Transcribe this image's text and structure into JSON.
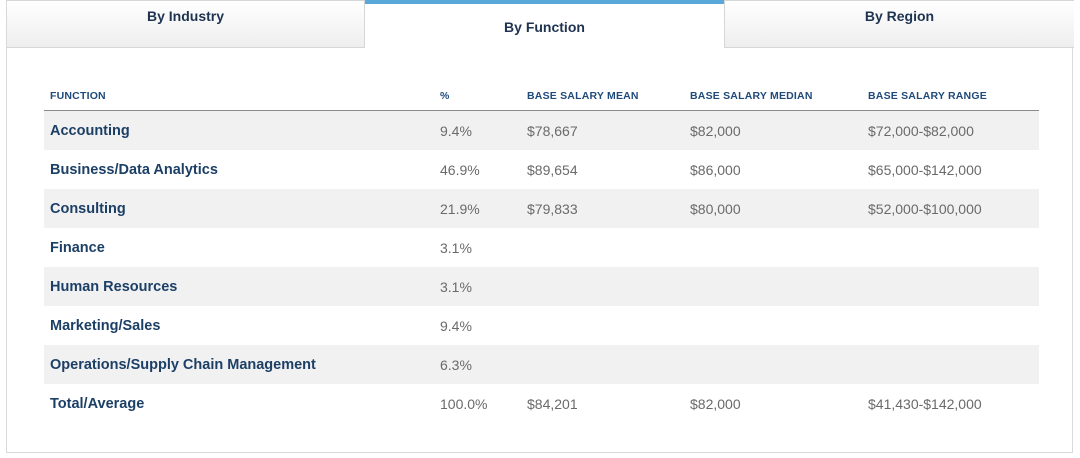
{
  "tabs": [
    {
      "label": "By Industry",
      "active": false
    },
    {
      "label": "By Function",
      "active": true
    },
    {
      "label": "By Region",
      "active": false
    }
  ],
  "colors": {
    "accent": "#5aa8d9",
    "header_text": "#1f4a7a",
    "function_text": "#1c3f66",
    "row_shade": "#f1f1f1"
  },
  "table": {
    "headers": [
      "FUNCTION",
      "%",
      "BASE SALARY MEAN",
      "BASE SALARY MEDIAN",
      "BASE SALARY RANGE"
    ],
    "rows": [
      [
        "Accounting",
        "9.4%",
        "$78,667",
        "$82,000",
        "$72,000-$82,000"
      ],
      [
        "Business/Data Analytics",
        "46.9%",
        "$89,654",
        "$86,000",
        "$65,000-$142,000"
      ],
      [
        "Consulting",
        "21.9%",
        "$79,833",
        "$80,000",
        "$52,000-$100,000"
      ],
      [
        "Finance",
        "3.1%",
        "",
        "",
        ""
      ],
      [
        "Human Resources",
        "3.1%",
        "",
        "",
        ""
      ],
      [
        "Marketing/Sales",
        "9.4%",
        "",
        "",
        ""
      ],
      [
        "Operations/Supply Chain Management",
        "6.3%",
        "",
        "",
        ""
      ],
      [
        "Total/Average",
        "100.0%",
        "$84,201",
        "$82,000",
        "$41,430-$142,000"
      ]
    ]
  }
}
